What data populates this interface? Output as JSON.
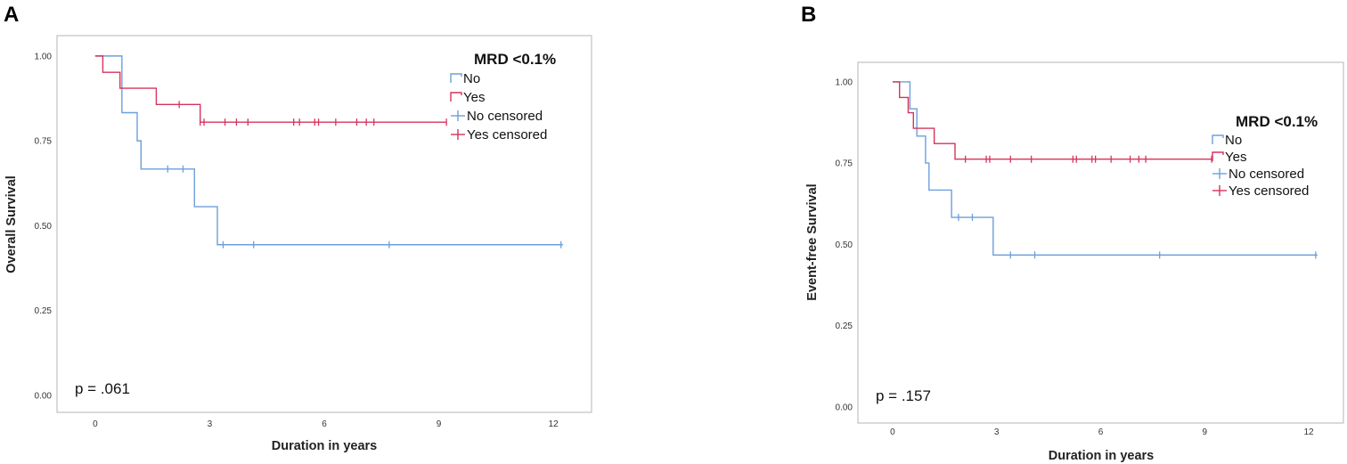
{
  "chart_data": [
    {
      "panel_letter": "A",
      "type": "line",
      "subtype": "kaplan-meier-step",
      "title": "",
      "xlabel": "Duration in years",
      "ylabel": "Overall Survival",
      "xlim": [
        -1,
        13
      ],
      "ylim": [
        -0.05,
        1.06
      ],
      "xticks": [
        0,
        3,
        6,
        9,
        12
      ],
      "yticks": [
        0.0,
        0.25,
        0.5,
        0.75,
        1.0
      ],
      "ytick_labels": [
        "0.00",
        "0.25",
        "0.50",
        "0.75",
        "1.00"
      ],
      "legend_title": "MRD <0.1%",
      "legend": [
        "No",
        "Yes",
        "No censored",
        "Yes censored"
      ],
      "legend_position": "top-right",
      "pvalue": "p = .061",
      "series": [
        {
          "name": "No",
          "color": "#6d9fdc",
          "steps": [
            [
              0,
              1.0
            ],
            [
              0.7,
              0.833
            ],
            [
              1.1,
              0.75
            ],
            [
              1.2,
              0.667
            ],
            [
              2.6,
              0.556
            ],
            [
              3.2,
              0.444
            ]
          ],
          "end_x": 12.25,
          "censored": [
            1.9,
            2.3,
            3.35,
            4.15,
            7.7,
            12.2
          ]
        },
        {
          "name": "Yes",
          "color": "#d6335c",
          "steps": [
            [
              0,
              1.0
            ],
            [
              0.2,
              0.952
            ],
            [
              0.65,
              0.905
            ],
            [
              1.6,
              0.857
            ],
            [
              2.75,
              0.805
            ]
          ],
          "end_x": 9.2,
          "censored": [
            2.2,
            2.75,
            2.85,
            3.4,
            3.7,
            4.0,
            5.2,
            5.35,
            5.75,
            5.85,
            6.3,
            6.85,
            7.1,
            7.3,
            9.2
          ]
        }
      ]
    },
    {
      "panel_letter": "B",
      "type": "line",
      "subtype": "kaplan-meier-step",
      "title": "",
      "xlabel": "Duration in years",
      "ylabel": "Event-free Survival",
      "xlim": [
        -1,
        13
      ],
      "ylim": [
        -0.05,
        1.06
      ],
      "xticks": [
        0,
        3,
        6,
        9,
        12
      ],
      "yticks": [
        0.0,
        0.25,
        0.5,
        0.75,
        1.0
      ],
      "ytick_labels": [
        "0.00",
        "0.25",
        "0.50",
        "0.75",
        "1.00"
      ],
      "legend_title": "MRD <0.1%",
      "legend": [
        "No",
        "Yes",
        "No censored",
        "Yes  censored"
      ],
      "legend_position": "top-right",
      "pvalue": "p = .157",
      "series": [
        {
          "name": "No",
          "color": "#6d9fdc",
          "steps": [
            [
              0,
              1.0
            ],
            [
              0.5,
              0.917
            ],
            [
              0.7,
              0.833
            ],
            [
              0.95,
              0.75
            ],
            [
              1.05,
              0.667
            ],
            [
              1.7,
              0.583
            ],
            [
              2.9,
              0.467
            ]
          ],
          "end_x": 12.25,
          "censored": [
            1.9,
            2.3,
            3.4,
            4.1,
            7.7,
            12.2
          ]
        },
        {
          "name": "Yes",
          "color": "#d6335c",
          "steps": [
            [
              0,
              1.0
            ],
            [
              0.2,
              0.952
            ],
            [
              0.45,
              0.905
            ],
            [
              0.6,
              0.857
            ],
            [
              1.2,
              0.81
            ],
            [
              1.8,
              0.762
            ]
          ],
          "end_x": 9.2,
          "censored": [
            2.1,
            2.7,
            2.8,
            3.4,
            4.0,
            5.2,
            5.3,
            5.75,
            5.85,
            6.3,
            6.85,
            7.1,
            7.3,
            9.2
          ]
        }
      ]
    }
  ]
}
